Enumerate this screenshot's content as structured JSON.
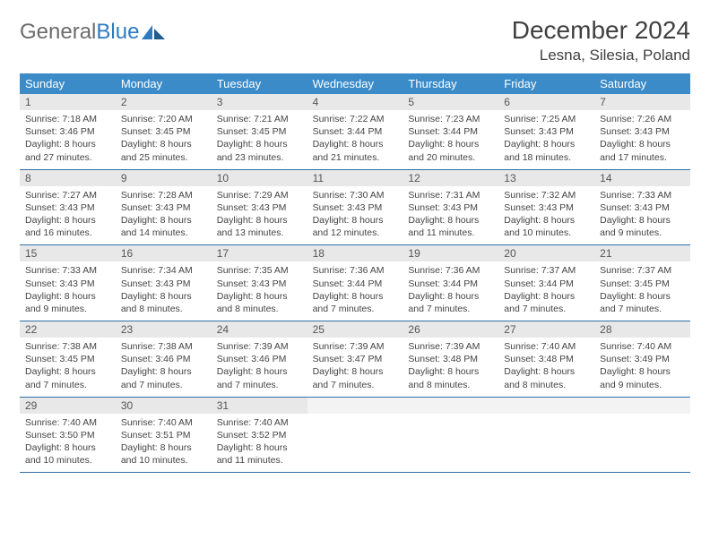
{
  "logo": {
    "text_gray": "General",
    "text_blue": "Blue"
  },
  "title": "December 2024",
  "location": "Lesna, Silesia, Poland",
  "colors": {
    "header_bg": "#3b8bc9",
    "header_text": "#ffffff",
    "daynum_bg": "#e8e8e8",
    "border": "#2f6fa8",
    "text": "#444444",
    "logo_gray": "#6c6c6c",
    "logo_blue": "#2f7ac0"
  },
  "day_names": [
    "Sunday",
    "Monday",
    "Tuesday",
    "Wednesday",
    "Thursday",
    "Friday",
    "Saturday"
  ],
  "weeks": [
    [
      {
        "n": "1",
        "sr": "Sunrise: 7:18 AM",
        "ss": "Sunset: 3:46 PM",
        "d1": "Daylight: 8 hours",
        "d2": "and 27 minutes."
      },
      {
        "n": "2",
        "sr": "Sunrise: 7:20 AM",
        "ss": "Sunset: 3:45 PM",
        "d1": "Daylight: 8 hours",
        "d2": "and 25 minutes."
      },
      {
        "n": "3",
        "sr": "Sunrise: 7:21 AM",
        "ss": "Sunset: 3:45 PM",
        "d1": "Daylight: 8 hours",
        "d2": "and 23 minutes."
      },
      {
        "n": "4",
        "sr": "Sunrise: 7:22 AM",
        "ss": "Sunset: 3:44 PM",
        "d1": "Daylight: 8 hours",
        "d2": "and 21 minutes."
      },
      {
        "n": "5",
        "sr": "Sunrise: 7:23 AM",
        "ss": "Sunset: 3:44 PM",
        "d1": "Daylight: 8 hours",
        "d2": "and 20 minutes."
      },
      {
        "n": "6",
        "sr": "Sunrise: 7:25 AM",
        "ss": "Sunset: 3:43 PM",
        "d1": "Daylight: 8 hours",
        "d2": "and 18 minutes."
      },
      {
        "n": "7",
        "sr": "Sunrise: 7:26 AM",
        "ss": "Sunset: 3:43 PM",
        "d1": "Daylight: 8 hours",
        "d2": "and 17 minutes."
      }
    ],
    [
      {
        "n": "8",
        "sr": "Sunrise: 7:27 AM",
        "ss": "Sunset: 3:43 PM",
        "d1": "Daylight: 8 hours",
        "d2": "and 16 minutes."
      },
      {
        "n": "9",
        "sr": "Sunrise: 7:28 AM",
        "ss": "Sunset: 3:43 PM",
        "d1": "Daylight: 8 hours",
        "d2": "and 14 minutes."
      },
      {
        "n": "10",
        "sr": "Sunrise: 7:29 AM",
        "ss": "Sunset: 3:43 PM",
        "d1": "Daylight: 8 hours",
        "d2": "and 13 minutes."
      },
      {
        "n": "11",
        "sr": "Sunrise: 7:30 AM",
        "ss": "Sunset: 3:43 PM",
        "d1": "Daylight: 8 hours",
        "d2": "and 12 minutes."
      },
      {
        "n": "12",
        "sr": "Sunrise: 7:31 AM",
        "ss": "Sunset: 3:43 PM",
        "d1": "Daylight: 8 hours",
        "d2": "and 11 minutes."
      },
      {
        "n": "13",
        "sr": "Sunrise: 7:32 AM",
        "ss": "Sunset: 3:43 PM",
        "d1": "Daylight: 8 hours",
        "d2": "and 10 minutes."
      },
      {
        "n": "14",
        "sr": "Sunrise: 7:33 AM",
        "ss": "Sunset: 3:43 PM",
        "d1": "Daylight: 8 hours",
        "d2": "and 9 minutes."
      }
    ],
    [
      {
        "n": "15",
        "sr": "Sunrise: 7:33 AM",
        "ss": "Sunset: 3:43 PM",
        "d1": "Daylight: 8 hours",
        "d2": "and 9 minutes."
      },
      {
        "n": "16",
        "sr": "Sunrise: 7:34 AM",
        "ss": "Sunset: 3:43 PM",
        "d1": "Daylight: 8 hours",
        "d2": "and 8 minutes."
      },
      {
        "n": "17",
        "sr": "Sunrise: 7:35 AM",
        "ss": "Sunset: 3:43 PM",
        "d1": "Daylight: 8 hours",
        "d2": "and 8 minutes."
      },
      {
        "n": "18",
        "sr": "Sunrise: 7:36 AM",
        "ss": "Sunset: 3:44 PM",
        "d1": "Daylight: 8 hours",
        "d2": "and 7 minutes."
      },
      {
        "n": "19",
        "sr": "Sunrise: 7:36 AM",
        "ss": "Sunset: 3:44 PM",
        "d1": "Daylight: 8 hours",
        "d2": "and 7 minutes."
      },
      {
        "n": "20",
        "sr": "Sunrise: 7:37 AM",
        "ss": "Sunset: 3:44 PM",
        "d1": "Daylight: 8 hours",
        "d2": "and 7 minutes."
      },
      {
        "n": "21",
        "sr": "Sunrise: 7:37 AM",
        "ss": "Sunset: 3:45 PM",
        "d1": "Daylight: 8 hours",
        "d2": "and 7 minutes."
      }
    ],
    [
      {
        "n": "22",
        "sr": "Sunrise: 7:38 AM",
        "ss": "Sunset: 3:45 PM",
        "d1": "Daylight: 8 hours",
        "d2": "and 7 minutes."
      },
      {
        "n": "23",
        "sr": "Sunrise: 7:38 AM",
        "ss": "Sunset: 3:46 PM",
        "d1": "Daylight: 8 hours",
        "d2": "and 7 minutes."
      },
      {
        "n": "24",
        "sr": "Sunrise: 7:39 AM",
        "ss": "Sunset: 3:46 PM",
        "d1": "Daylight: 8 hours",
        "d2": "and 7 minutes."
      },
      {
        "n": "25",
        "sr": "Sunrise: 7:39 AM",
        "ss": "Sunset: 3:47 PM",
        "d1": "Daylight: 8 hours",
        "d2": "and 7 minutes."
      },
      {
        "n": "26",
        "sr": "Sunrise: 7:39 AM",
        "ss": "Sunset: 3:48 PM",
        "d1": "Daylight: 8 hours",
        "d2": "and 8 minutes."
      },
      {
        "n": "27",
        "sr": "Sunrise: 7:40 AM",
        "ss": "Sunset: 3:48 PM",
        "d1": "Daylight: 8 hours",
        "d2": "and 8 minutes."
      },
      {
        "n": "28",
        "sr": "Sunrise: 7:40 AM",
        "ss": "Sunset: 3:49 PM",
        "d1": "Daylight: 8 hours",
        "d2": "and 9 minutes."
      }
    ],
    [
      {
        "n": "29",
        "sr": "Sunrise: 7:40 AM",
        "ss": "Sunset: 3:50 PM",
        "d1": "Daylight: 8 hours",
        "d2": "and 10 minutes."
      },
      {
        "n": "30",
        "sr": "Sunrise: 7:40 AM",
        "ss": "Sunset: 3:51 PM",
        "d1": "Daylight: 8 hours",
        "d2": "and 10 minutes."
      },
      {
        "n": "31",
        "sr": "Sunrise: 7:40 AM",
        "ss": "Sunset: 3:52 PM",
        "d1": "Daylight: 8 hours",
        "d2": "and 11 minutes."
      },
      null,
      null,
      null,
      null
    ]
  ]
}
